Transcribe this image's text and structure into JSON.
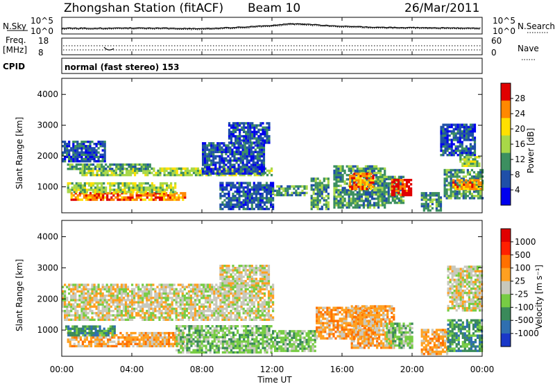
{
  "header": {
    "title": "Zhongshan Station (fitACF)",
    "beam": "Beam 10",
    "date": "26/Mar/2011"
  },
  "top_panels": {
    "nsky_label": "N.Sky",
    "nsky_ticks": [
      "10^5",
      "10^0"
    ],
    "nsearch_label": "N.Search",
    "nsearch_ticks": [
      "10^5",
      "10^0"
    ],
    "freq_label": "Freq.",
    "freq_unit": "[MHz]",
    "freq_ticks": [
      "18",
      "8"
    ],
    "nave_label": "Nave",
    "nave_ticks": [
      "60",
      "0"
    ],
    "cpid_label": "CPID",
    "cpid_text": "normal (fast stereo) 153"
  },
  "axes": {
    "xlabel": "Time UT",
    "x_ticks": [
      "00:00",
      "04:00",
      "08:00",
      "12:00",
      "16:00",
      "20:00",
      "00:00"
    ],
    "ylabel": "Slant Range [km]",
    "y_ticks": [
      "4000",
      "3000",
      "2000",
      "1000"
    ]
  },
  "colorbars": {
    "power": {
      "label": "Power [dB]",
      "ticks": [
        "28",
        "24",
        "20",
        "16",
        "12",
        "8",
        "4"
      ],
      "colors": [
        "#0000ee",
        "#1f4fa8",
        "#3c8f60",
        "#a8d848",
        "#ffe000",
        "#ff8800",
        "#e00000"
      ]
    },
    "velocity": {
      "label": "Velocity [m s⁻¹]",
      "ticks": [
        "1000",
        "500",
        "100",
        "25",
        "-25",
        "-100",
        "-500",
        "-1000"
      ],
      "colors": [
        "#1a38c8",
        "#2f6fb0",
        "#3a8a5a",
        "#77cc44",
        "#c8c8bc",
        "#ffa020",
        "#ff7000",
        "#ff2000",
        "#e00000"
      ]
    }
  },
  "chart_data": [
    {
      "type": "heatmap",
      "name": "power",
      "x_unit": "hour UT",
      "x_range": [
        0,
        24
      ],
      "y_unit": "km",
      "y_range": [
        180,
        4500
      ],
      "regions": [
        {
          "x": [
            0.0,
            2.5
          ],
          "y": [
            1800,
            2450
          ],
          "level": 1
        },
        {
          "x": [
            1.0,
            12.0
          ],
          "y": [
            1350,
            1600
          ],
          "level": 3
        },
        {
          "x": [
            0.3,
            5.0
          ],
          "y": [
            1550,
            1750
          ],
          "level": 2
        },
        {
          "x": [
            0.5,
            7.0
          ],
          "y": [
            550,
            800
          ],
          "level": 5
        },
        {
          "x": [
            0.3,
            6.5
          ],
          "y": [
            800,
            1100
          ],
          "level": 3
        },
        {
          "x": [
            8.0,
            11.5
          ],
          "y": [
            1400,
            2400
          ],
          "level": 1
        },
        {
          "x": [
            9.5,
            11.8
          ],
          "y": [
            2400,
            3100
          ],
          "level": 1
        },
        {
          "x": [
            9.0,
            12.0
          ],
          "y": [
            250,
            1100
          ],
          "level": 1
        },
        {
          "x": [
            12.0,
            14.0
          ],
          "y": [
            700,
            1000
          ],
          "level": 2
        },
        {
          "x": [
            14.2,
            15.2
          ],
          "y": [
            250,
            1300
          ],
          "level": 2
        },
        {
          "x": [
            15.5,
            18.5
          ],
          "y": [
            300,
            1700
          ],
          "level": 2
        },
        {
          "x": [
            16.4,
            17.8
          ],
          "y": [
            900,
            1400
          ],
          "level": 5
        },
        {
          "x": [
            18.0,
            19.5
          ],
          "y": [
            450,
            1300
          ],
          "level": 2
        },
        {
          "x": [
            18.8,
            20.0
          ],
          "y": [
            700,
            1200
          ],
          "level": 6
        },
        {
          "x": [
            20.5,
            21.6
          ],
          "y": [
            200,
            800
          ],
          "level": 2
        },
        {
          "x": [
            21.8,
            24.0
          ],
          "y": [
            600,
            1550
          ],
          "level": 2
        },
        {
          "x": [
            22.3,
            23.9
          ],
          "y": [
            900,
            1200
          ],
          "level": 5
        },
        {
          "x": [
            21.6,
            23.6
          ],
          "y": [
            2000,
            3050
          ],
          "level": 1
        },
        {
          "x": [
            22.7,
            23.9
          ],
          "y": [
            1650,
            2000
          ],
          "level": 3
        }
      ]
    },
    {
      "type": "heatmap",
      "name": "velocity",
      "x_unit": "hour UT",
      "x_range": [
        0,
        24
      ],
      "y_unit": "km",
      "y_range": [
        180,
        4500
      ],
      "regions": [
        {
          "x": [
            0.0,
            12.0
          ],
          "y": [
            1300,
            2450
          ],
          "level": 4
        },
        {
          "x": [
            9.0,
            11.8
          ],
          "y": [
            2400,
            3100
          ],
          "level": 4
        },
        {
          "x": [
            0.3,
            7.0
          ],
          "y": [
            450,
            900
          ],
          "level": 5
        },
        {
          "x": [
            0.2,
            3.0
          ],
          "y": [
            800,
            1100
          ],
          "level": 2
        },
        {
          "x": [
            6.5,
            12.0
          ],
          "y": [
            250,
            1100
          ],
          "level": 3
        },
        {
          "x": [
            12.0,
            14.5
          ],
          "y": [
            300,
            1000
          ],
          "level": 3
        },
        {
          "x": [
            14.5,
            18.0
          ],
          "y": [
            700,
            1750
          ],
          "level": 5
        },
        {
          "x": [
            16.5,
            19.0
          ],
          "y": [
            400,
            1800
          ],
          "level": 5
        },
        {
          "x": [
            18.5,
            20.0
          ],
          "y": [
            400,
            1200
          ],
          "level": 3
        },
        {
          "x": [
            20.5,
            22.0
          ],
          "y": [
            200,
            1000
          ],
          "level": 5
        },
        {
          "x": [
            22.0,
            24.0
          ],
          "y": [
            300,
            1300
          ],
          "level": 2
        },
        {
          "x": [
            22.0,
            24.0
          ],
          "y": [
            1600,
            3050
          ],
          "level": 4
        }
      ]
    },
    {
      "type": "line",
      "name": "N.Sky / N.Search noise",
      "x": [
        0,
        2,
        4,
        6,
        8,
        10,
        12,
        13,
        14,
        16,
        18,
        20,
        22,
        24
      ],
      "y_log10": [
        1.6,
        1.6,
        1.7,
        1.6,
        1.4,
        1.9,
        2.6,
        3.2,
        3.0,
        2.3,
        1.9,
        1.8,
        1.7,
        1.6
      ]
    }
  ]
}
